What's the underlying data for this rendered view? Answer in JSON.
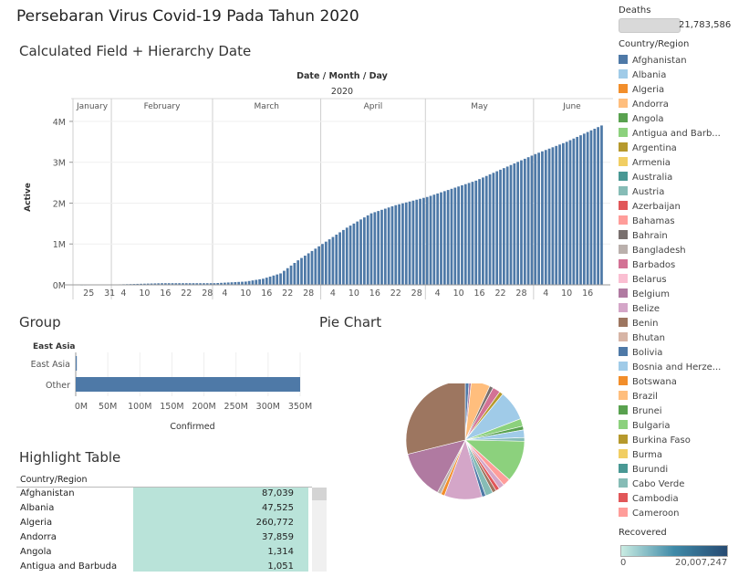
{
  "dashboard": {
    "title": "Persebaran Virus Covid-19 Pada Tahun 2020"
  },
  "filters": {
    "deaths": {
      "label": "Deaths",
      "value": "21,783,586"
    },
    "recovered": {
      "label": "Recovered",
      "min": "0",
      "max": "20,007,247"
    }
  },
  "legend": {
    "title": "Country/Region",
    "items": [
      {
        "label": "Afghanistan",
        "color": "#4e79a7"
      },
      {
        "label": "Albania",
        "color": "#a0cbe8"
      },
      {
        "label": "Algeria",
        "color": "#f28e2b"
      },
      {
        "label": "Andorra",
        "color": "#ffbe7d"
      },
      {
        "label": "Angola",
        "color": "#59a14f"
      },
      {
        "label": "Antigua and Barb...",
        "color": "#8cd17d"
      },
      {
        "label": "Argentina",
        "color": "#b6992d"
      },
      {
        "label": "Armenia",
        "color": "#f1ce63"
      },
      {
        "label": "Australia",
        "color": "#499894"
      },
      {
        "label": "Austria",
        "color": "#86bcb6"
      },
      {
        "label": "Azerbaijan",
        "color": "#e15759"
      },
      {
        "label": "Bahamas",
        "color": "#ff9d9a"
      },
      {
        "label": "Bahrain",
        "color": "#79706e"
      },
      {
        "label": "Bangladesh",
        "color": "#bab0ac"
      },
      {
        "label": "Barbados",
        "color": "#d37295"
      },
      {
        "label": "Belarus",
        "color": "#fabfd2"
      },
      {
        "label": "Belgium",
        "color": "#b07aa1"
      },
      {
        "label": "Belize",
        "color": "#d4a6c8"
      },
      {
        "label": "Benin",
        "color": "#9d7660"
      },
      {
        "label": "Bhutan",
        "color": "#d7b5a6"
      },
      {
        "label": "Bolivia",
        "color": "#4e79a7"
      },
      {
        "label": "Bosnia and Herze...",
        "color": "#a0cbe8"
      },
      {
        "label": "Botswana",
        "color": "#f28e2b"
      },
      {
        "label": "Brazil",
        "color": "#ffbe7d"
      },
      {
        "label": "Brunei",
        "color": "#59a14f"
      },
      {
        "label": "Bulgaria",
        "color": "#8cd17d"
      },
      {
        "label": "Burkina Faso",
        "color": "#b6992d"
      },
      {
        "label": "Burma",
        "color": "#f1ce63"
      },
      {
        "label": "Burundi",
        "color": "#499894"
      },
      {
        "label": "Cabo Verde",
        "color": "#86bcb6"
      },
      {
        "label": "Cambodia",
        "color": "#e15759"
      },
      {
        "label": "Cameroon",
        "color": "#ff9d9a"
      }
    ]
  },
  "timeline_sheet": {
    "title": "Calculated Field + Hierarchy Date",
    "header": "Date / Month / Day",
    "year": "2020",
    "ylabel": "Active",
    "months": [
      "January",
      "February",
      "March",
      "April",
      "May",
      "June"
    ],
    "day_ticks": [
      "25",
      "31",
      "4",
      "10",
      "16",
      "22",
      "28",
      "4",
      "10",
      "16",
      "22",
      "28",
      "4",
      "10",
      "16",
      "22",
      "28",
      "4",
      "10",
      "16",
      "22",
      "28",
      "4",
      "10",
      "16"
    ],
    "y_ticks": [
      "4M",
      "3M",
      "2M",
      "1M",
      "0M"
    ]
  },
  "group_sheet": {
    "title": "Group",
    "header": "East Asia",
    "xlabel": "Confirmed",
    "x_ticks": [
      "0M",
      "50M",
      "100M",
      "150M",
      "200M",
      "250M",
      "300M",
      "350M"
    ]
  },
  "pie_sheet": {
    "title": "Pie Chart"
  },
  "highlight_table": {
    "title": "Highlight Table",
    "column": "Country/Region",
    "rows": [
      {
        "country": "Afghanistan",
        "value": "87,039"
      },
      {
        "country": "Albania",
        "value": "47,525"
      },
      {
        "country": "Algeria",
        "value": "260,772"
      },
      {
        "country": "Andorra",
        "value": "37,859"
      },
      {
        "country": "Angola",
        "value": "1,314"
      },
      {
        "country": "Antigua and Barbuda",
        "value": "1,051"
      }
    ]
  },
  "chart_data": [
    {
      "type": "bar",
      "title": "Calculated Field + Hierarchy Date",
      "xlabel": "Date / Month / Day",
      "ylabel": "Active",
      "ylim": [
        0,
        4200000
      ],
      "x_range": [
        "2020-01-22",
        "2020-06-20"
      ],
      "series": [
        {
          "anchors": [
            {
              "x": "2020-01-22",
              "y": 0
            },
            {
              "x": "2020-01-31",
              "y": 5000
            },
            {
              "x": "2020-02-15",
              "y": 40000
            },
            {
              "x": "2020-03-01",
              "y": 40000
            },
            {
              "x": "2020-03-10",
              "y": 80000
            },
            {
              "x": "2020-03-15",
              "y": 150000
            },
            {
              "x": "2020-03-20",
              "y": 280000
            },
            {
              "x": "2020-03-25",
              "y": 600000
            },
            {
              "x": "2020-04-01",
              "y": 1000000
            },
            {
              "x": "2020-04-08",
              "y": 1400000
            },
            {
              "x": "2020-04-15",
              "y": 1750000
            },
            {
              "x": "2020-04-22",
              "y": 1950000
            },
            {
              "x": "2020-05-01",
              "y": 2150000
            },
            {
              "x": "2020-05-15",
              "y": 2550000
            },
            {
              "x": "2020-06-01",
              "y": 3200000
            },
            {
              "x": "2020-06-10",
              "y": 3500000
            },
            {
              "x": "2020-06-20",
              "y": 3900000
            }
          ]
        }
      ]
    },
    {
      "type": "bar",
      "title": "Group",
      "categories": [
        "East Asia",
        "Other"
      ],
      "values": [
        1000000,
        350000000
      ],
      "xlabel": "Confirmed",
      "xlim": [
        0,
        360000000
      ]
    },
    {
      "type": "pie",
      "title": "Pie Chart",
      "slices": [
        {
          "value": 1,
          "color": "#4e79a7"
        },
        {
          "value": 0.6,
          "color": "#b07aa1"
        },
        {
          "value": 5,
          "color": "#ffbe7d"
        },
        {
          "value": 1,
          "color": "#79706e"
        },
        {
          "value": 2,
          "color": "#d37295"
        },
        {
          "value": 1,
          "color": "#b6992d"
        },
        {
          "value": 8,
          "color": "#a0cbe8"
        },
        {
          "value": 2,
          "color": "#8cd17d"
        },
        {
          "value": 1,
          "color": "#59a14f"
        },
        {
          "value": 2,
          "color": "#a0cbe8"
        },
        {
          "value": 1,
          "color": "#86bcb6"
        },
        {
          "value": 11,
          "color": "#8cd17d"
        },
        {
          "value": 2,
          "color": "#ff9d9a"
        },
        {
          "value": 1.5,
          "color": "#d4a6c8"
        },
        {
          "value": 1,
          "color": "#e15759"
        },
        {
          "value": 1,
          "color": "#9d7660"
        },
        {
          "value": 2,
          "color": "#86bcb6"
        },
        {
          "value": 1,
          "color": "#4e79a7"
        },
        {
          "value": 10,
          "color": "#d4a6c8"
        },
        {
          "value": 1,
          "color": "#f28e2b"
        },
        {
          "value": 1,
          "color": "#bab0ac"
        },
        {
          "value": 13,
          "color": "#b07aa1"
        },
        {
          "value": 28,
          "color": "#9d7660"
        }
      ]
    }
  ]
}
